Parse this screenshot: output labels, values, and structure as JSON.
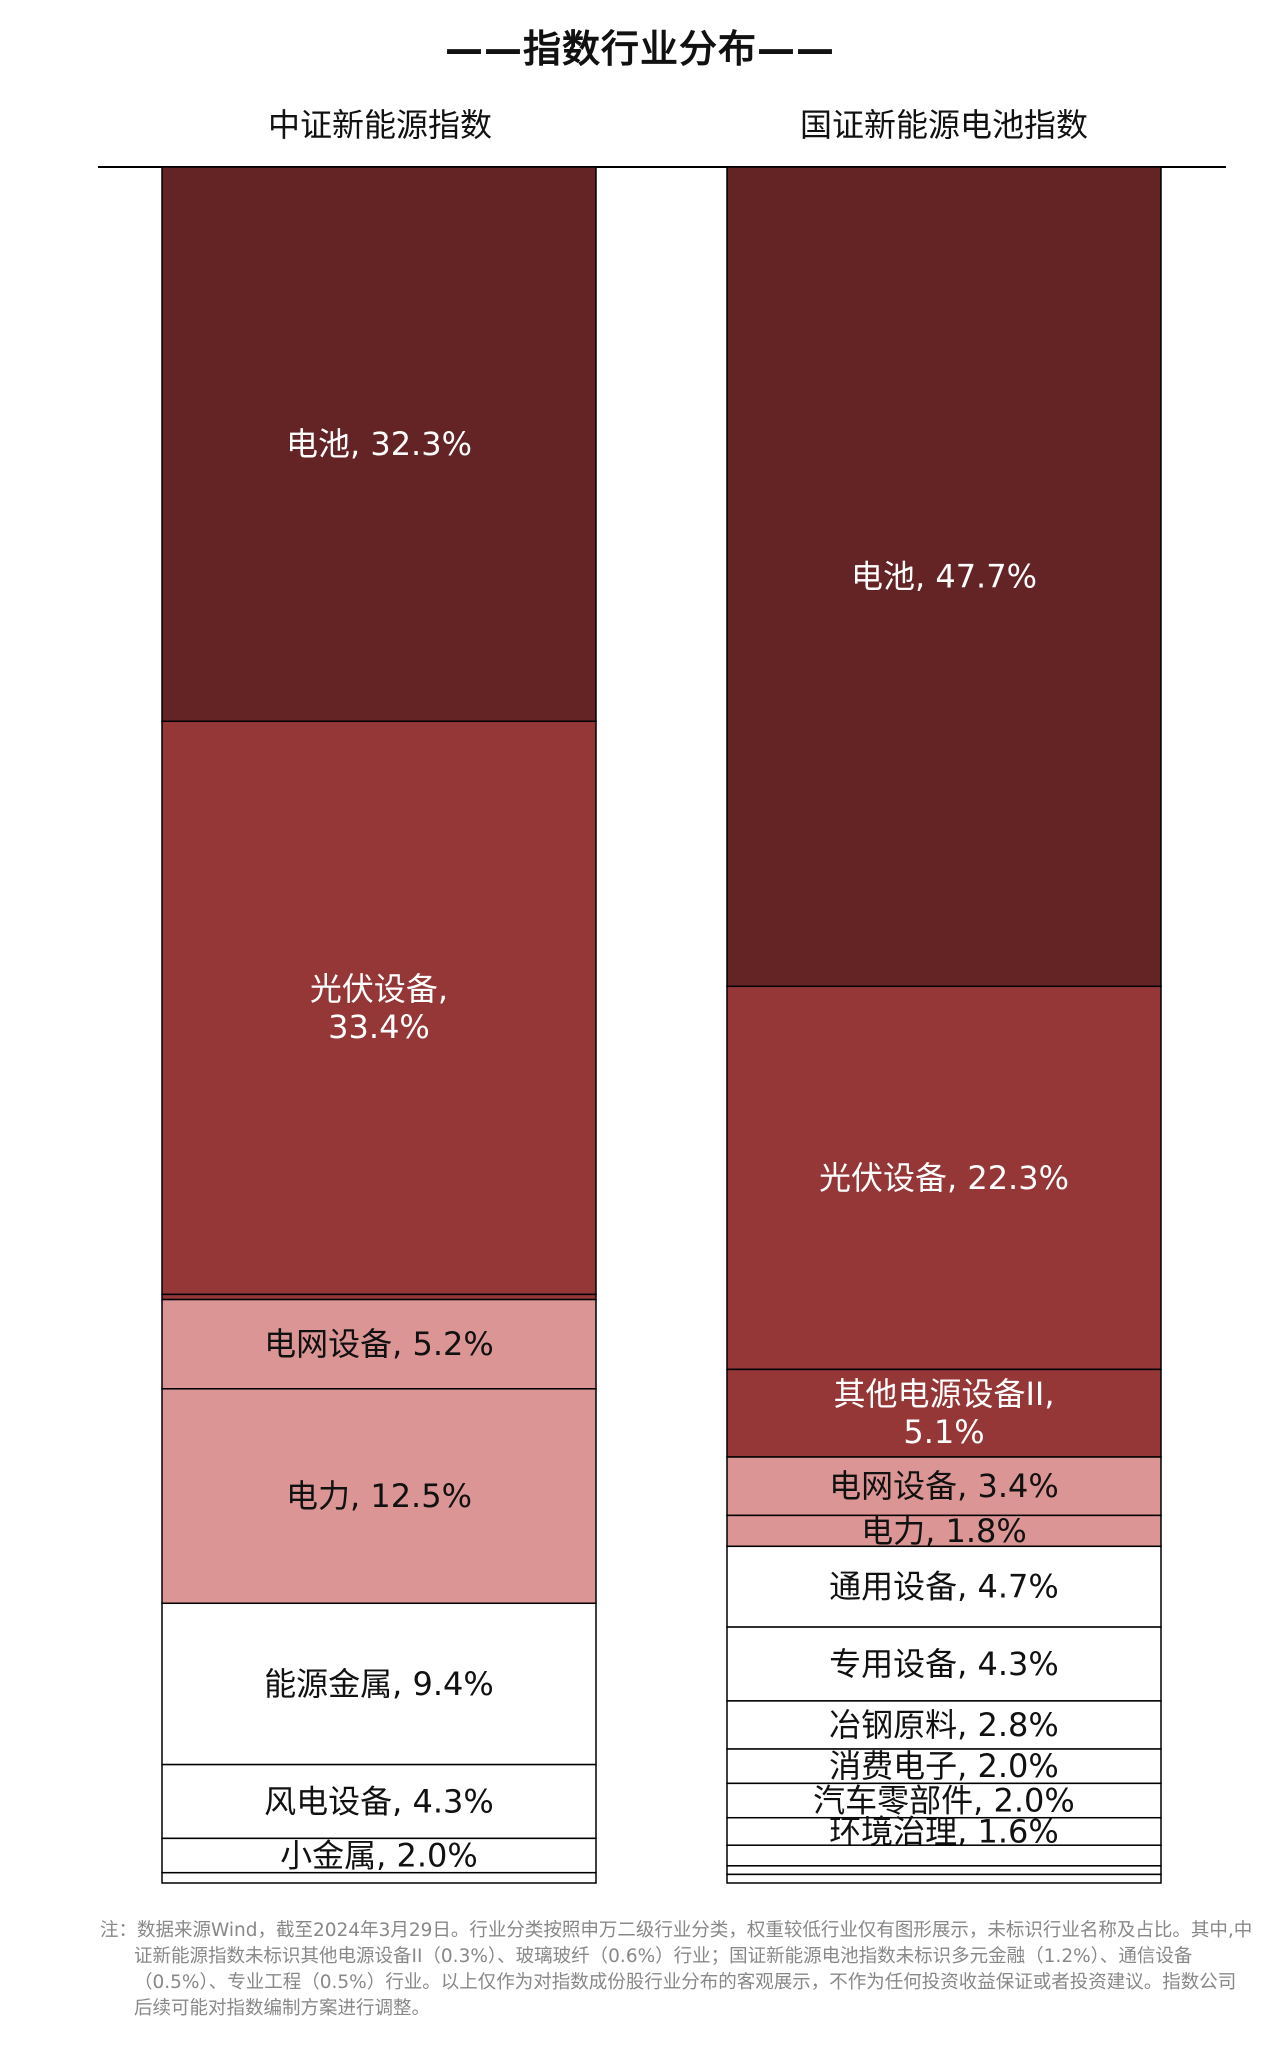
{
  "title": "——指数行业分布——",
  "footnote": "注：数据来源Wind，截至2024年3月29日。行业分类按照申万二级行业分类，权重较低行业仅有图形展示，未标识行业名称及占比。其中,中证新能源指数未标识其他电源设备II（0.3%）、玻璃玻纤（0.6%）行业；国证新能源电池指数未标识多元金融（1.2%）、通信设备（0.5%）、专业工程（0.5%）行业。以上仅作为对指数成份股行业分布的客观展示，不作为任何投资收益保证或者投资建议。指数公司后续可能对指数编制方案进行调整。",
  "chart_data": [
    {
      "type": "bar",
      "stacked": true,
      "name": "中证新能源指数",
      "segments": [
        {
          "label": "电池, 32.3%",
          "value": 32.3,
          "color": "#642426"
        },
        {
          "label": "光伏设备,\n33.4%",
          "value": 33.4,
          "color": "#943736"
        },
        {
          "label": "",
          "value": 0.3,
          "color": "#943736"
        },
        {
          "label": "电网设备, 5.2%",
          "value": 5.2,
          "color": "#db9594"
        },
        {
          "label": "电力, 12.5%",
          "value": 12.5,
          "color": "#db9594"
        },
        {
          "label": "能源金属, 9.4%",
          "value": 9.4,
          "color": "#ffffff"
        },
        {
          "label": "风电设备, 4.3%",
          "value": 4.3,
          "color": "#ffffff"
        },
        {
          "label": "小金属, 2.0%",
          "value": 2.0,
          "color": "#ffffff"
        },
        {
          "label": "",
          "value": 0.6,
          "color": "#ffffff"
        }
      ]
    },
    {
      "type": "bar",
      "stacked": true,
      "name": "国证新能源电池指数",
      "segments": [
        {
          "label": "电池, 47.7%",
          "value": 47.7,
          "color": "#642426"
        },
        {
          "label": "光伏设备, 22.3%",
          "value": 22.3,
          "color": "#943736"
        },
        {
          "label": "其他电源设备II,\n5.1%",
          "value": 5.1,
          "color": "#943736"
        },
        {
          "label": "电网设备, 3.4%",
          "value": 3.4,
          "color": "#db9594"
        },
        {
          "label": "电力, 1.8%",
          "value": 1.8,
          "color": "#db9594"
        },
        {
          "label": "通用设备, 4.7%",
          "value": 4.7,
          "color": "#ffffff"
        },
        {
          "label": "专用设备, 4.3%",
          "value": 4.3,
          "color": "#ffffff"
        },
        {
          "label": "冶钢原料, 2.8%",
          "value": 2.8,
          "color": "#ffffff"
        },
        {
          "label": "消费电子, 2.0%",
          "value": 2.0,
          "color": "#ffffff"
        },
        {
          "label": "汽车零部件, 2.0%",
          "value": 2.0,
          "color": "#ffffff"
        },
        {
          "label": "环境治理, 1.6%",
          "value": 1.6,
          "color": "#ffffff"
        },
        {
          "label": "",
          "value": 1.2,
          "color": "#ffffff"
        },
        {
          "label": "",
          "value": 0.5,
          "color": "#ffffff"
        },
        {
          "label": "",
          "value": 0.5,
          "color": "#ffffff"
        }
      ]
    }
  ]
}
